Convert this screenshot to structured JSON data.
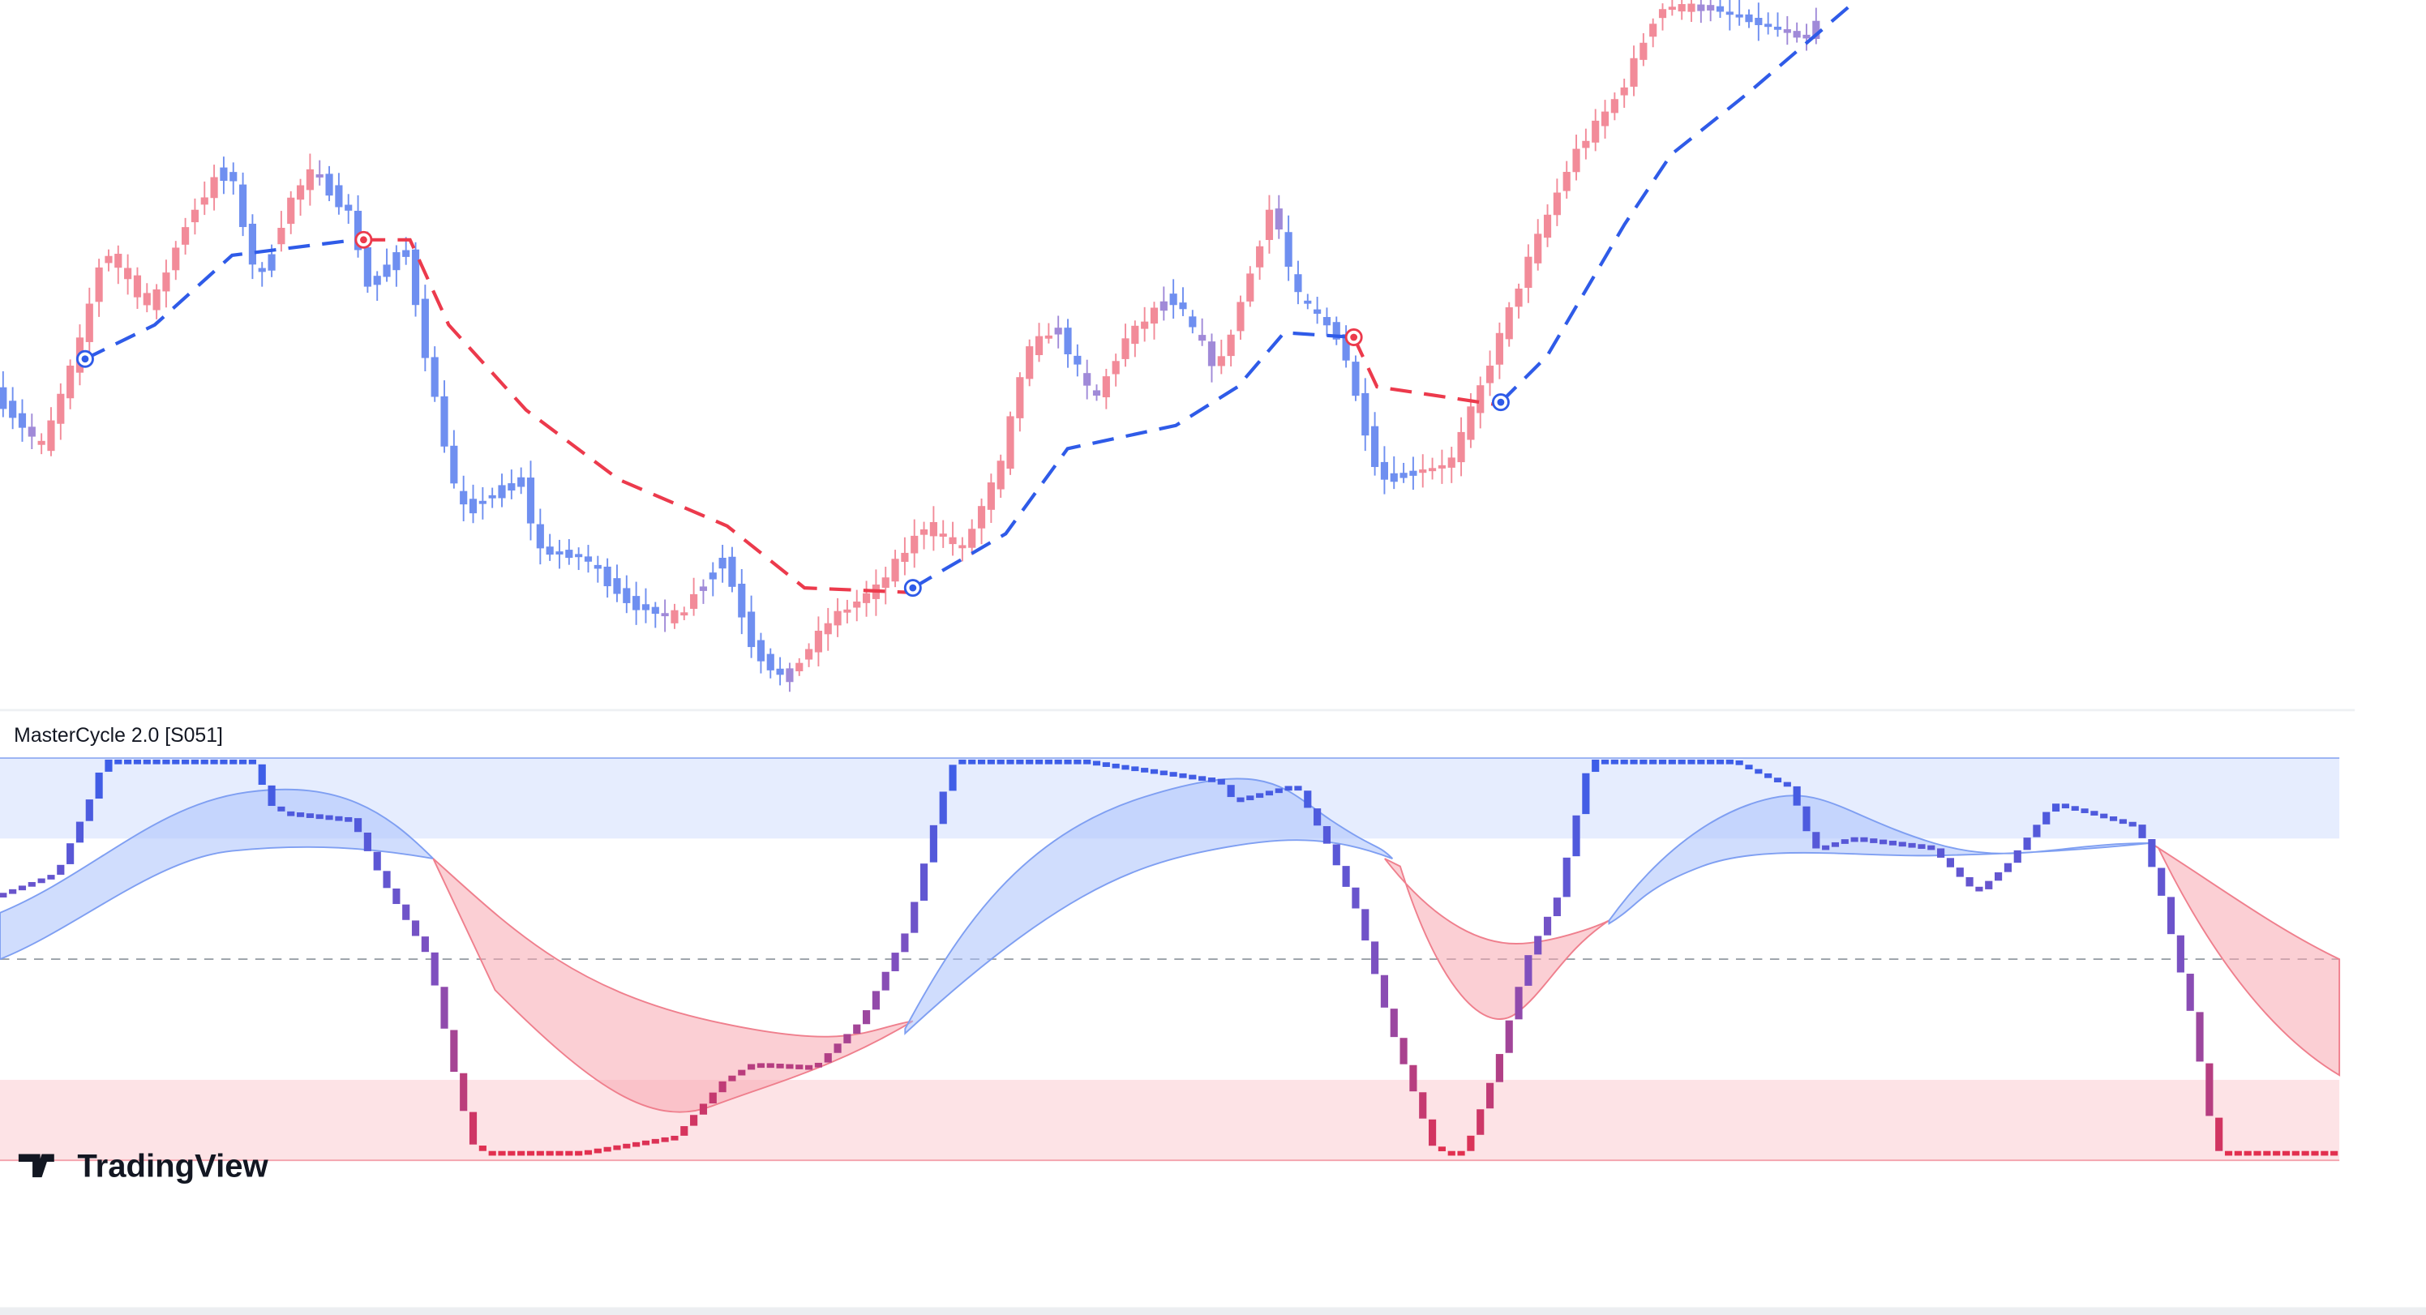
{
  "indicator": {
    "title": "MasterCycle 2.0 [S051]"
  },
  "watermark": {
    "label": "TradingView"
  }
}
